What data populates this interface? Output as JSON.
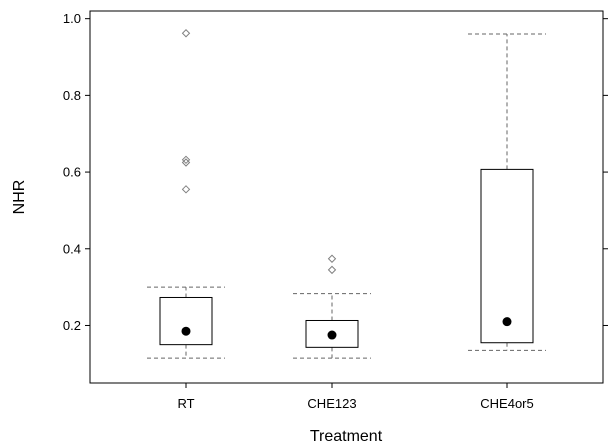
{
  "chart_data": {
    "type": "box",
    "xlabel": "Treatment",
    "ylabel": "NHR",
    "ylim": [
      0.05,
      1.02
    ],
    "yticks": [
      0.2,
      0.4,
      0.6,
      0.8,
      1.0
    ],
    "ytick_labels": [
      "0.2",
      "0.4",
      "0.6",
      "0.8",
      "1.0"
    ],
    "categories": [
      "RT",
      "CHE123",
      "CHE4or5"
    ],
    "boxes": [
      {
        "category": "RT",
        "whisker_low": 0.115,
        "q1": 0.15,
        "median": 0.185,
        "q3": 0.273,
        "whisker_high": 0.3,
        "outliers": [
          0.555,
          0.625,
          0.632,
          0.962
        ]
      },
      {
        "category": "CHE123",
        "whisker_low": 0.115,
        "q1": 0.143,
        "median": 0.175,
        "q3": 0.213,
        "whisker_high": 0.283,
        "outliers": [
          0.345,
          0.374
        ]
      },
      {
        "category": "CHE4or5",
        "whisker_low": 0.135,
        "q1": 0.155,
        "median": 0.21,
        "q3": 0.607,
        "whisker_high": 0.96,
        "outliers": []
      }
    ],
    "grid": false,
    "colors": {
      "box": "#000000",
      "whisker": "#666666",
      "median_dot": "#000000",
      "outlier": "#808080"
    }
  }
}
